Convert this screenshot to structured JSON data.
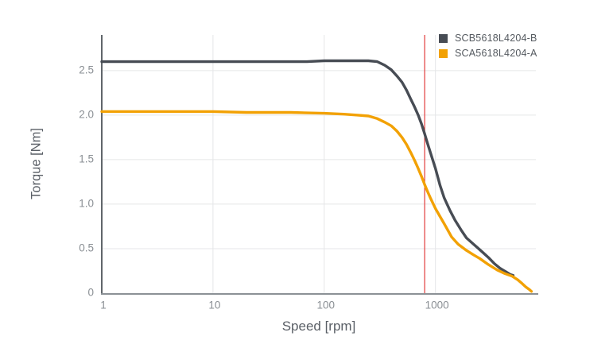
{
  "chart_data": {
    "type": "line",
    "title": "",
    "xlabel": "Speed [rpm]",
    "ylabel": "Torque [Nm]",
    "x_scale": "log",
    "xlim": [
      1,
      8000
    ],
    "ylim": [
      0,
      2.9
    ],
    "x_ticks": [
      1,
      10,
      100,
      1000
    ],
    "y_ticks": [
      0,
      0.5,
      1.0,
      1.5,
      2.0,
      2.5
    ],
    "grid": true,
    "legend_position": "top-right",
    "marker_line": {
      "x": 800,
      "color": "#e23b3b"
    },
    "series": [
      {
        "name": "SCB5618L4204-B",
        "color": "#474c54",
        "points": [
          [
            1,
            2.6
          ],
          [
            2,
            2.6
          ],
          [
            5,
            2.6
          ],
          [
            10,
            2.6
          ],
          [
            20,
            2.6
          ],
          [
            40,
            2.6
          ],
          [
            70,
            2.6
          ],
          [
            100,
            2.61
          ],
          [
            140,
            2.61
          ],
          [
            200,
            2.61
          ],
          [
            250,
            2.61
          ],
          [
            300,
            2.6
          ],
          [
            350,
            2.56
          ],
          [
            400,
            2.51
          ],
          [
            450,
            2.44
          ],
          [
            500,
            2.37
          ],
          [
            550,
            2.28
          ],
          [
            600,
            2.18
          ],
          [
            650,
            2.09
          ],
          [
            700,
            2.0
          ],
          [
            750,
            1.9
          ],
          [
            800,
            1.79
          ],
          [
            850,
            1.68
          ],
          [
            900,
            1.58
          ],
          [
            1000,
            1.4
          ],
          [
            1100,
            1.21
          ],
          [
            1200,
            1.07
          ],
          [
            1350,
            0.93
          ],
          [
            1500,
            0.82
          ],
          [
            1700,
            0.71
          ],
          [
            1900,
            0.62
          ],
          [
            2200,
            0.55
          ],
          [
            2600,
            0.47
          ],
          [
            3000,
            0.4
          ],
          [
            3400,
            0.33
          ],
          [
            3800,
            0.28
          ],
          [
            4300,
            0.24
          ],
          [
            4700,
            0.21
          ],
          [
            5000,
            0.2
          ]
        ]
      },
      {
        "name": "SCA5618L4204-A",
        "color": "#f2a104",
        "points": [
          [
            1,
            2.04
          ],
          [
            2,
            2.04
          ],
          [
            5,
            2.04
          ],
          [
            10,
            2.04
          ],
          [
            20,
            2.03
          ],
          [
            50,
            2.03
          ],
          [
            100,
            2.02
          ],
          [
            150,
            2.01
          ],
          [
            200,
            2.0
          ],
          [
            250,
            1.99
          ],
          [
            300,
            1.96
          ],
          [
            350,
            1.92
          ],
          [
            400,
            1.88
          ],
          [
            450,
            1.82
          ],
          [
            500,
            1.75
          ],
          [
            550,
            1.67
          ],
          [
            600,
            1.58
          ],
          [
            650,
            1.49
          ],
          [
            700,
            1.4
          ],
          [
            750,
            1.31
          ],
          [
            800,
            1.22
          ],
          [
            850,
            1.14
          ],
          [
            900,
            1.07
          ],
          [
            1000,
            0.95
          ],
          [
            1100,
            0.86
          ],
          [
            1200,
            0.78
          ],
          [
            1400,
            0.63
          ],
          [
            1600,
            0.55
          ],
          [
            1900,
            0.48
          ],
          [
            2200,
            0.43
          ],
          [
            2500,
            0.39
          ],
          [
            3000,
            0.32
          ],
          [
            3600,
            0.26
          ],
          [
            4200,
            0.22
          ],
          [
            4900,
            0.19
          ],
          [
            5500,
            0.15
          ],
          [
            6000,
            0.11
          ],
          [
            6500,
            0.07
          ],
          [
            7000,
            0.04
          ],
          [
            7300,
            0.02
          ]
        ]
      }
    ]
  },
  "colors": {
    "grid": "#e5e6e8",
    "axis_x": "#8b9196",
    "axis_y": "#61666b",
    "tick_text": "#8a8f94",
    "axis_title_text": "#5a5f66",
    "legend_text": "#555a60",
    "marker_line": "#e23b3b"
  }
}
